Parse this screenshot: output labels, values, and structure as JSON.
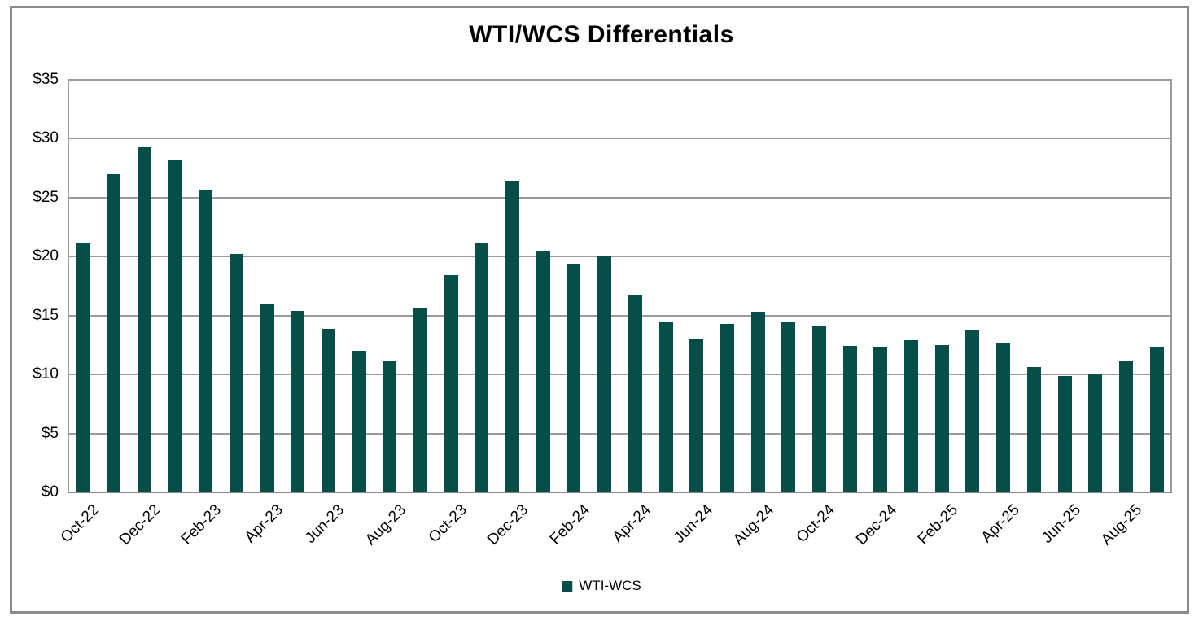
{
  "chart_data": {
    "type": "bar",
    "title": "WTI/WCS Differentials",
    "series_name": "WTI-WCS",
    "categories": [
      "Oct-22",
      "Nov-22",
      "Dec-22",
      "Jan-23",
      "Feb-23",
      "Mar-23",
      "Apr-23",
      "May-23",
      "Jun-23",
      "Jul-23",
      "Aug-23",
      "Sep-23",
      "Oct-23",
      "Nov-23",
      "Dec-23",
      "Jan-24",
      "Feb-24",
      "Mar-24",
      "Apr-24",
      "May-24",
      "Jun-24",
      "Jul-24",
      "Aug-24",
      "Sep-24",
      "Oct-24",
      "Nov-24",
      "Dec-24",
      "Jan-25",
      "Feb-25",
      "Mar-25",
      "Apr-25",
      "May-25",
      "Jun-25",
      "Jul-25",
      "Aug-25",
      "Sep-25"
    ],
    "values": [
      21.2,
      27.0,
      29.3,
      28.2,
      25.6,
      20.2,
      16.0,
      15.4,
      13.9,
      12.0,
      11.2,
      15.6,
      18.4,
      21.1,
      26.4,
      20.4,
      19.4,
      20.0,
      16.7,
      14.4,
      13.0,
      14.3,
      15.3,
      14.4,
      14.1,
      12.4,
      12.3,
      12.9,
      12.5,
      13.8,
      12.7,
      10.6,
      9.9,
      10.1,
      11.2,
      12.3
    ],
    "xlabel": "",
    "ylabel": "",
    "ylim": [
      0,
      35
    ],
    "y_tick_values": [
      0,
      5,
      10,
      15,
      20,
      25,
      30,
      35
    ],
    "y_tick_labels": [
      "$0",
      "$5",
      "$10",
      "$15",
      "$20",
      "$25",
      "$30",
      "$35"
    ],
    "x_tick_step": 2,
    "x_tick_labels": [
      "Oct-22",
      "Dec-22",
      "Feb-23",
      "Apr-23",
      "Jun-23",
      "Aug-23",
      "Oct-23",
      "Dec-23",
      "Feb-24",
      "Apr-24",
      "Jun-24",
      "Aug-24",
      "Oct-24",
      "Dec-24",
      "Feb-25",
      "Apr-25",
      "Jun-25",
      "Aug-25"
    ],
    "grid": true,
    "legend_position": "bottom",
    "colors": {
      "bar": "#074E48",
      "gridline": "#9B9B9B",
      "axis": "#8A8A8A",
      "border": "#8A8A8A",
      "text": "#000000",
      "background": "#FFFFFF"
    }
  }
}
